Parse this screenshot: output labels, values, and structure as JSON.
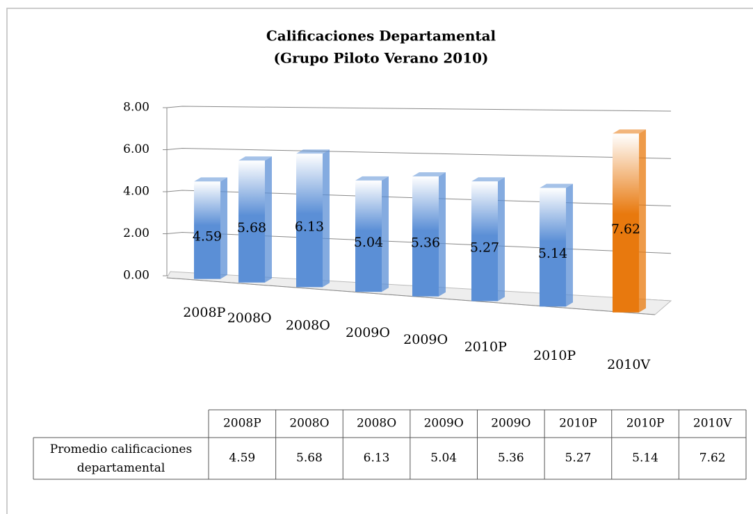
{
  "chart_data": {
    "type": "bar",
    "title": "Calificaciones Departamental",
    "subtitle": "(Grupo Piloto Verano 2010)",
    "categories": [
      "2008P",
      "2008O",
      "2008O",
      "2009O",
      "2009O",
      "2010P",
      "2010P",
      "2010V"
    ],
    "series": [
      {
        "name": "Promedio calificaciones departamental",
        "color": "#5b8fd6",
        "colors": [
          "#5b8fd6",
          "#5b8fd6",
          "#5b8fd6",
          "#5b8fd6",
          "#5b8fd6",
          "#5b8fd6",
          "#5b8fd6",
          "#e8790e"
        ],
        "values": [
          4.59,
          5.68,
          6.13,
          5.04,
          5.36,
          5.27,
          5.14,
          7.62
        ]
      }
    ],
    "ylim": [
      0,
      8
    ],
    "yticks": [
      {
        "value": 0,
        "label": "0.00"
      },
      {
        "value": 2,
        "label": "2.00"
      },
      {
        "value": 4,
        "label": "4.00"
      },
      {
        "value": 6,
        "label": "6.00"
      },
      {
        "value": 8,
        "label": "8.00"
      }
    ],
    "grid": true,
    "data_table": true
  }
}
